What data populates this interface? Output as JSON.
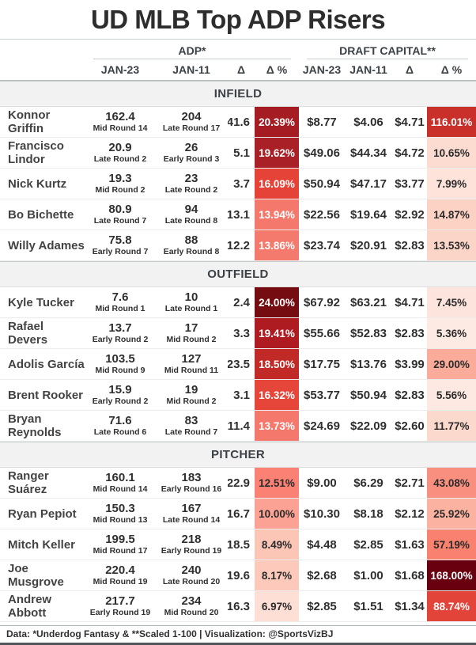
{
  "title": "UD MLB Top ADP Risers",
  "header": {
    "group1": "ADP*",
    "group2": "DRAFT CAPITAL**",
    "sub": [
      "JAN-23",
      "JAN-11",
      "Δ",
      "Δ %",
      "JAN-23",
      "JAN-11",
      "Δ",
      "Δ %"
    ]
  },
  "sections": [
    {
      "label": "INFIELD",
      "rows": [
        {
          "name": "Konnor Griffin",
          "adp_jan23": "162.4",
          "adp_jan23_round": "Mid Round 14",
          "adp_jan11": "204",
          "adp_jan11_round": "Late Round 17",
          "adp_delta": "41.6",
          "adp_pct": "20.39%",
          "adp_pct_bg": "#a51d22",
          "adp_pct_fg": "#ffffff",
          "dc_jan23": "$8.77",
          "dc_jan11": "$4.06",
          "dc_delta": "$4.71",
          "dc_pct": "116.01%",
          "dc_pct_bg": "#c93029",
          "dc_pct_fg": "#ffffff"
        },
        {
          "name": "Francisco Lindor",
          "adp_jan23": "20.9",
          "adp_jan23_round": "Late Round 2",
          "adp_jan11": "26",
          "adp_jan11_round": "Early Round 3",
          "adp_delta": "5.1",
          "adp_pct": "19.62%",
          "adp_pct_bg": "#a92026",
          "adp_pct_fg": "#ffffff",
          "dc_jan23": "$49.06",
          "dc_jan11": "$44.34",
          "dc_delta": "$4.72",
          "dc_pct": "10.65%",
          "dc_pct_bg": "#fcdbd0",
          "dc_pct_fg": "#2b2b2b"
        },
        {
          "name": "Nick Kurtz",
          "adp_jan23": "19.3",
          "adp_jan23_round": "Mid Round 2",
          "adp_jan11": "23",
          "adp_jan11_round": "Late Round 2",
          "adp_delta": "3.7",
          "adp_pct": "16.09%",
          "adp_pct_bg": "#e54338",
          "adp_pct_fg": "#ffffff",
          "dc_jan23": "$50.94",
          "dc_jan11": "$47.17",
          "dc_delta": "$3.77",
          "dc_pct": "7.99%",
          "dc_pct_bg": "#fde3da",
          "dc_pct_fg": "#2b2b2b"
        },
        {
          "name": "Bo Bichette",
          "adp_jan23": "80.9",
          "adp_jan23_round": "Late Round 7",
          "adp_jan11": "94",
          "adp_jan11_round": "Late Round 8",
          "adp_delta": "13.1",
          "adp_pct": "13.94%",
          "adp_pct_bg": "#f5786c",
          "adp_pct_fg": "#ffffff",
          "dc_jan23": "$22.56",
          "dc_jan11": "$19.64",
          "dc_delta": "$2.92",
          "dc_pct": "14.87%",
          "dc_pct_bg": "#fcd2c5",
          "dc_pct_fg": "#2b2b2b"
        },
        {
          "name": "Willy Adames",
          "adp_jan23": "75.8",
          "adp_jan23_round": "Early Round 7",
          "adp_jan11": "88",
          "adp_jan11_round": "Early Round 8",
          "adp_delta": "12.2",
          "adp_pct": "13.86%",
          "adp_pct_bg": "#f57a6e",
          "adp_pct_fg": "#ffffff",
          "dc_jan23": "$23.74",
          "dc_jan11": "$20.91",
          "dc_delta": "$2.83",
          "dc_pct": "13.53%",
          "dc_pct_bg": "#fcd5c9",
          "dc_pct_fg": "#2b2b2b"
        }
      ]
    },
    {
      "label": "OUTFIELD",
      "rows": [
        {
          "name": "Kyle Tucker",
          "adp_jan23": "7.6",
          "adp_jan23_round": "Mid Round 1",
          "adp_jan11": "10",
          "adp_jan11_round": "Late Round 1",
          "adp_delta": "2.4",
          "adp_pct": "24.00%",
          "adp_pct_bg": "#740c12",
          "adp_pct_fg": "#ffffff",
          "dc_jan23": "$67.92",
          "dc_jan11": "$63.21",
          "dc_delta": "$4.71",
          "dc_pct": "7.45%",
          "dc_pct_bg": "#fde4dc",
          "dc_pct_fg": "#2b2b2b"
        },
        {
          "name": "Rafael Devers",
          "adp_jan23": "13.7",
          "adp_jan23_round": "Early Round 2",
          "adp_jan11": "17",
          "adp_jan11_round": "Mid Round 2",
          "adp_delta": "3.3",
          "adp_pct": "19.41%",
          "adp_pct_bg": "#ae1c21",
          "adp_pct_fg": "#ffffff",
          "dc_jan23": "$55.66",
          "dc_jan11": "$52.83",
          "dc_delta": "$2.83",
          "dc_pct": "5.36%",
          "dc_pct_bg": "#fdeae3",
          "dc_pct_fg": "#2b2b2b"
        },
        {
          "name": "Adolis García",
          "adp_jan23": "103.5",
          "adp_jan23_round": "Mid Round 9",
          "adp_jan11": "127",
          "adp_jan11_round": "Mid Round 11",
          "adp_delta": "23.5",
          "adp_pct": "18.50%",
          "adp_pct_bg": "#c12a27",
          "adp_pct_fg": "#ffffff",
          "dc_jan23": "$17.75",
          "dc_jan11": "$13.76",
          "dc_delta": "$3.99",
          "dc_pct": "29.00%",
          "dc_pct_bg": "#fbab99",
          "dc_pct_fg": "#2b2b2b"
        },
        {
          "name": "Brent Rooker",
          "adp_jan23": "15.9",
          "adp_jan23_round": "Early Round 2",
          "adp_jan11": "19",
          "adp_jan11_round": "Mid Round 2",
          "adp_delta": "3.1",
          "adp_pct": "16.32%",
          "adp_pct_bg": "#e6453a",
          "adp_pct_fg": "#ffffff",
          "dc_jan23": "$53.77",
          "dc_jan11": "$50.94",
          "dc_delta": "$2.83",
          "dc_pct": "5.56%",
          "dc_pct_bg": "#fde9e2",
          "dc_pct_fg": "#2b2b2b"
        },
        {
          "name": "Bryan Reynolds",
          "adp_jan23": "71.6",
          "adp_jan23_round": "Late Round 6",
          "adp_jan11": "83",
          "adp_jan11_round": "Late Round 7",
          "adp_delta": "11.4",
          "adp_pct": "13.73%",
          "adp_pct_bg": "#f5786d",
          "adp_pct_fg": "#ffffff",
          "dc_jan23": "$24.69",
          "dc_jan11": "$22.09",
          "dc_delta": "$2.60",
          "dc_pct": "11.77%",
          "dc_pct_bg": "#fcd9cd",
          "dc_pct_fg": "#2b2b2b"
        }
      ]
    },
    {
      "label": "PITCHER",
      "rows": [
        {
          "name": "Ranger Suárez",
          "adp_jan23": "160.1",
          "adp_jan23_round": "Mid Round 14",
          "adp_jan11": "183",
          "adp_jan11_round": "Early Round 16",
          "adp_delta": "22.9",
          "adp_pct": "12.51%",
          "adp_pct_bg": "#fa8173",
          "adp_pct_fg": "#2b2b2b",
          "dc_jan23": "$9.00",
          "dc_jan11": "$6.29",
          "dc_delta": "$2.71",
          "dc_pct": "43.08%",
          "dc_pct_bg": "#f9907f",
          "dc_pct_fg": "#2b2b2b"
        },
        {
          "name": "Ryan Pepiot",
          "adp_jan23": "150.3",
          "adp_jan23_round": "Mid Round 13",
          "adp_jan11": "167",
          "adp_jan11_round": "Late Round 14",
          "adp_delta": "16.7",
          "adp_pct": "10.00%",
          "adp_pct_bg": "#fba294",
          "adp_pct_fg": "#2b2b2b",
          "dc_jan23": "$10.30",
          "dc_jan11": "$8.18",
          "dc_delta": "$2.12",
          "dc_pct": "25.92%",
          "dc_pct_bg": "#fbb2a1",
          "dc_pct_fg": "#2b2b2b"
        },
        {
          "name": "Mitch Keller",
          "adp_jan23": "199.5",
          "adp_jan23_round": "Mid Round 17",
          "adp_jan11": "218",
          "adp_jan11_round": "Early Round 19",
          "adp_delta": "18.5",
          "adp_pct": "8.49%",
          "adp_pct_bg": "#fcc6b7",
          "adp_pct_fg": "#2b2b2b",
          "dc_jan23": "$4.48",
          "dc_jan11": "$2.85",
          "dc_delta": "$1.63",
          "dc_pct": "57.19%",
          "dc_pct_bg": "#f8816f",
          "dc_pct_fg": "#2b2b2b"
        },
        {
          "name": "Joe Musgrove",
          "adp_jan23": "220.4",
          "adp_jan23_round": "Mid Round 19",
          "adp_jan11": "240",
          "adp_jan11_round": "Late Round 20",
          "adp_delta": "19.6",
          "adp_pct": "8.17%",
          "adp_pct_bg": "#fcc9bb",
          "adp_pct_fg": "#2b2b2b",
          "dc_jan23": "$2.68",
          "dc_jan11": "$1.00",
          "dc_delta": "$1.68",
          "dc_pct": "168.00%",
          "dc_pct_bg": "#690010",
          "dc_pct_fg": "#ffffff"
        },
        {
          "name": "Andrew Abbott",
          "adp_jan23": "217.7",
          "adp_jan23_round": "Early Round 19",
          "adp_jan11": "234",
          "adp_jan11_round": "Mid Round 20",
          "adp_delta": "16.3",
          "adp_pct": "6.97%",
          "adp_pct_bg": "#fddfd5",
          "adp_pct_fg": "#2b2b2b",
          "dc_jan23": "$2.85",
          "dc_jan11": "$1.51",
          "dc_delta": "$1.34",
          "dc_pct": "88.74%",
          "dc_pct_bg": "#e2443a",
          "dc_pct_fg": "#ffffff"
        }
      ]
    }
  ],
  "footer": {
    "text": "Data: *Underdog Fantasy & **Scaled 1-100 | Visualization: @SportsVizBJ"
  },
  "colors": {
    "heat_min": "#fff5f0",
    "heat_max": "#67000d",
    "section_bg": "#f2f2f2",
    "title_text": "#2d2d2d"
  },
  "chart_data": {
    "type": "table",
    "title": "UD MLB Top ADP Risers",
    "column_groups": [
      "ADP*",
      "DRAFT CAPITAL**"
    ],
    "columns": [
      "Player",
      "ADP JAN-23",
      "ADP JAN-23 Round",
      "ADP JAN-11",
      "ADP JAN-11 Round",
      "ADP Δ",
      "ADP Δ%",
      "DC JAN-23",
      "DC JAN-11",
      "DC Δ",
      "DC Δ%"
    ],
    "sections": {
      "INFIELD": [
        [
          "Konnor Griffin",
          162.4,
          "Mid Round 14",
          204,
          "Late Round 17",
          41.6,
          20.39,
          8.77,
          4.06,
          4.71,
          116.01
        ],
        [
          "Francisco Lindor",
          20.9,
          "Late Round 2",
          26,
          "Early Round 3",
          5.1,
          19.62,
          49.06,
          44.34,
          4.72,
          10.65
        ],
        [
          "Nick Kurtz",
          19.3,
          "Mid Round 2",
          23,
          "Late Round 2",
          3.7,
          16.09,
          50.94,
          47.17,
          3.77,
          7.99
        ],
        [
          "Bo Bichette",
          80.9,
          "Late Round 7",
          94,
          "Late Round 8",
          13.1,
          13.94,
          22.56,
          19.64,
          2.92,
          14.87
        ],
        [
          "Willy Adames",
          75.8,
          "Early Round 7",
          88,
          "Early Round 8",
          12.2,
          13.86,
          23.74,
          20.91,
          2.83,
          13.53
        ]
      ],
      "OUTFIELD": [
        [
          "Kyle Tucker",
          7.6,
          "Mid Round 1",
          10,
          "Late Round 1",
          2.4,
          24.0,
          67.92,
          63.21,
          4.71,
          7.45
        ],
        [
          "Rafael Devers",
          13.7,
          "Early Round 2",
          17,
          "Mid Round 2",
          3.3,
          19.41,
          55.66,
          52.83,
          2.83,
          5.36
        ],
        [
          "Adolis García",
          103.5,
          "Mid Round 9",
          127,
          "Mid Round 11",
          23.5,
          18.5,
          17.75,
          13.76,
          3.99,
          29.0
        ],
        [
          "Brent Rooker",
          15.9,
          "Early Round 2",
          19,
          "Mid Round 2",
          3.1,
          16.32,
          53.77,
          50.94,
          2.83,
          5.56
        ],
        [
          "Bryan Reynolds",
          71.6,
          "Late Round 6",
          83,
          "Late Round 7",
          11.4,
          13.73,
          24.69,
          22.09,
          2.6,
          11.77
        ]
      ],
      "PITCHER": [
        [
          "Ranger Suárez",
          160.1,
          "Mid Round 14",
          183,
          "Early Round 16",
          22.9,
          12.51,
          9.0,
          6.29,
          2.71,
          43.08
        ],
        [
          "Ryan Pepiot",
          150.3,
          "Mid Round 13",
          167,
          "Late Round 14",
          16.7,
          10.0,
          10.3,
          8.18,
          2.12,
          25.92
        ],
        [
          "Mitch Keller",
          199.5,
          "Mid Round 17",
          218,
          "Early Round 19",
          18.5,
          8.49,
          4.48,
          2.85,
          1.63,
          57.19
        ],
        [
          "Joe Musgrove",
          220.4,
          "Mid Round 19",
          240,
          "Late Round 20",
          19.6,
          8.17,
          2.68,
          1.0,
          1.68,
          168.0
        ],
        [
          "Andrew Abbott",
          217.7,
          "Early Round 19",
          234,
          "Mid Round 20",
          16.3,
          6.97,
          2.85,
          1.51,
          1.34,
          88.74
        ]
      ]
    }
  }
}
